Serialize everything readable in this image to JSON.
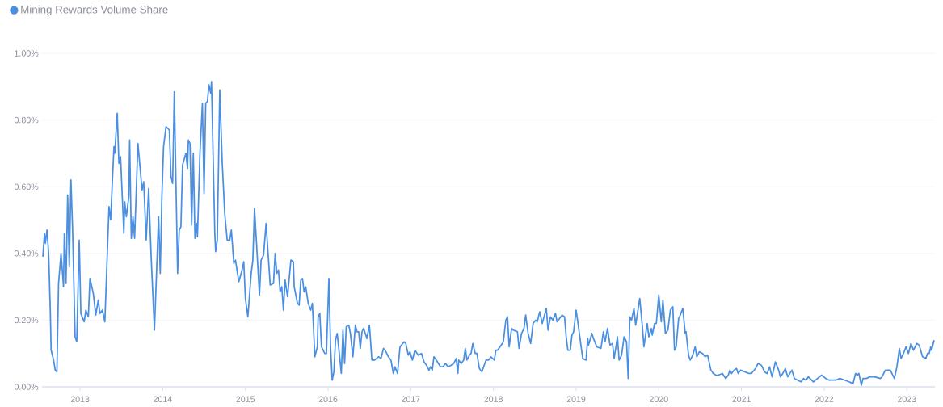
{
  "chart_data": {
    "type": "line",
    "x": [
      2012.55,
      2012.57,
      2012.58,
      2012.6,
      2012.62,
      2012.64,
      2012.65,
      2012.68,
      2012.7,
      2012.72,
      2012.74,
      2012.77,
      2012.8,
      2012.81,
      2012.83,
      2012.85,
      2012.87,
      2012.89,
      2012.91,
      2012.94,
      2012.96,
      2012.99,
      2013.01,
      2013.05,
      2013.07,
      2013.1,
      2013.12,
      2013.16,
      2013.19,
      2013.22,
      2013.24,
      2013.27,
      2013.3,
      2013.35,
      2013.37,
      2013.41,
      2013.42,
      2013.45,
      2013.47,
      2013.49,
      2013.53,
      2013.54,
      2013.56,
      2013.59,
      2013.6,
      2013.62,
      2013.64,
      2013.66,
      2013.7,
      2013.75,
      2013.77,
      2013.8,
      2013.83,
      2013.86,
      2013.9,
      2013.95,
      2013.97,
      2013.99,
      2014.01,
      2014.04,
      2014.08,
      2014.1,
      2014.12,
      2014.14,
      2014.18,
      2014.2,
      2014.22,
      2014.24,
      2014.28,
      2014.3,
      2014.31,
      2014.33,
      2014.35,
      2014.37,
      2014.39,
      2014.41,
      2014.42,
      2014.45,
      2014.48,
      2014.5,
      2014.52,
      2014.54,
      2014.56,
      2014.58,
      2014.59,
      2014.63,
      2014.64,
      2014.66,
      2014.69,
      2014.72,
      2014.75,
      2014.78,
      2014.81,
      2014.83,
      2014.86,
      2014.88,
      2014.92,
      2014.96,
      2014.98,
      2015.0,
      2015.03,
      2015.07,
      2015.09,
      2015.11,
      2015.13,
      2015.17,
      2015.19,
      2015.22,
      2015.25,
      2015.3,
      2015.34,
      2015.36,
      2015.38,
      2015.4,
      2015.42,
      2015.44,
      2015.46,
      2015.48,
      2015.51,
      2015.55,
      2015.58,
      2015.59,
      2015.63,
      2015.65,
      2015.67,
      2015.69,
      2015.71,
      2015.73,
      2015.76,
      2015.79,
      2015.81,
      2015.84,
      2015.87,
      2015.88,
      2015.9,
      2015.92,
      2015.96,
      2015.98,
      2016.01,
      2016.03,
      2016.05,
      2016.07,
      2016.09,
      2016.11,
      2016.14,
      2016.16,
      2016.18,
      2016.2,
      2016.22,
      2016.25,
      2016.27,
      2016.3,
      2016.33,
      2016.35,
      2016.37,
      2016.39,
      2016.41,
      2016.43,
      2016.47,
      2016.5,
      2016.53,
      2016.56,
      2016.61,
      2016.64,
      2016.67,
      2016.69,
      2016.73,
      2016.76,
      2016.79,
      2016.81,
      2016.84,
      2016.87,
      2016.92,
      2016.94,
      2016.97,
      2016.99,
      2017.02,
      2017.05,
      2017.09,
      2017.13,
      2017.16,
      2017.19,
      2017.22,
      2017.24,
      2017.26,
      2017.28,
      2017.31,
      2017.36,
      2017.39,
      2017.42,
      2017.45,
      2017.49,
      2017.52,
      2017.55,
      2017.57,
      2017.58,
      2017.61,
      2017.64,
      2017.66,
      2017.68,
      2017.71,
      2017.73,
      2017.75,
      2017.78,
      2017.8,
      2017.83,
      2017.86,
      2017.91,
      2017.94,
      2017.97,
      2018.01,
      2018.03,
      2018.05,
      2018.08,
      2018.12,
      2018.15,
      2018.17,
      2018.19,
      2018.22,
      2018.24,
      2018.29,
      2018.31,
      2018.34,
      2018.37,
      2018.39,
      2018.42,
      2018.45,
      2018.48,
      2018.51,
      2018.53,
      2018.56,
      2018.59,
      2018.64,
      2018.66,
      2018.69,
      2018.72,
      2018.75,
      2018.77,
      2018.83,
      2018.86,
      2018.88,
      2018.9,
      2018.93,
      2018.95,
      2018.97,
      2019.0,
      2019.02,
      2019.05,
      2019.08,
      2019.12,
      2019.14,
      2019.15,
      2019.19,
      2019.21,
      2019.25,
      2019.3,
      2019.33,
      2019.35,
      2019.38,
      2019.41,
      2019.44,
      2019.46,
      2019.5,
      2019.52,
      2019.55,
      2019.58,
      2019.61,
      2019.63,
      2019.65,
      2019.67,
      2019.7,
      2019.72,
      2019.77,
      2019.8,
      2019.82,
      2019.86,
      2019.88,
      2019.91,
      2019.92,
      2019.95,
      2019.97,
      2020.0,
      2020.03,
      2020.05,
      2020.08,
      2020.11,
      2020.14,
      2020.17,
      2020.19,
      2020.21,
      2020.24,
      2020.26,
      2020.29,
      2020.32,
      2020.33,
      2020.36,
      2020.38,
      2020.41,
      2020.44,
      2020.46,
      2020.49,
      2020.53,
      2020.56,
      2020.59,
      2020.63,
      2020.66,
      2020.69,
      2020.72,
      2020.77,
      2020.81,
      2020.84,
      2020.86,
      2020.88,
      2020.91,
      2020.94,
      2020.96,
      2020.99,
      2021.04,
      2021.09,
      2021.12,
      2021.17,
      2021.2,
      2021.24,
      2021.28,
      2021.31,
      2021.34,
      2021.37,
      2021.41,
      2021.45,
      2021.47,
      2021.5,
      2021.53,
      2021.56,
      2021.61,
      2021.64,
      2021.68,
      2021.72,
      2021.75,
      2021.78,
      2021.81,
      2021.87,
      2021.92,
      2021.97,
      2022.02,
      2022.06,
      2022.11,
      2022.14,
      2022.19,
      2022.25,
      2022.3,
      2022.35,
      2022.38,
      2022.4,
      2022.42,
      2022.45,
      2022.47,
      2022.51,
      2022.55,
      2022.61,
      2022.68,
      2022.7,
      2022.74,
      2022.77,
      2022.8,
      2022.85,
      2022.88,
      2022.91,
      2022.93,
      2022.96,
      2022.99,
      2023.02,
      2023.05,
      2023.08,
      2023.12,
      2023.15,
      2023.19,
      2023.23,
      2023.25,
      2023.27,
      2023.29,
      2023.3,
      2023.33
    ],
    "series": [
      {
        "name": "Mining Rewards Volume Share",
        "color": "#4a8fe2",
        "values": [
          0.39,
          0.46,
          0.43,
          0.47,
          0.4,
          0.23,
          0.11,
          0.08,
          0.05,
          0.045,
          0.31,
          0.4,
          0.3,
          0.46,
          0.31,
          0.575,
          0.36,
          0.62,
          0.47,
          0.15,
          0.135,
          0.44,
          0.22,
          0.195,
          0.23,
          0.21,
          0.325,
          0.28,
          0.215,
          0.26,
          0.22,
          0.23,
          0.195,
          0.54,
          0.5,
          0.72,
          0.7,
          0.82,
          0.67,
          0.69,
          0.46,
          0.555,
          0.51,
          0.57,
          0.74,
          0.445,
          0.51,
          0.445,
          0.73,
          0.59,
          0.615,
          0.44,
          0.595,
          0.39,
          0.17,
          0.51,
          0.34,
          0.57,
          0.72,
          0.78,
          0.77,
          0.63,
          0.61,
          0.885,
          0.34,
          0.47,
          0.48,
          0.665,
          0.7,
          0.655,
          0.74,
          0.73,
          0.485,
          0.7,
          0.445,
          0.49,
          0.45,
          0.7,
          0.85,
          0.58,
          0.85,
          0.855,
          0.905,
          0.88,
          0.915,
          0.46,
          0.405,
          0.44,
          0.89,
          0.67,
          0.52,
          0.44,
          0.44,
          0.47,
          0.37,
          0.38,
          0.315,
          0.35,
          0.375,
          0.265,
          0.21,
          0.34,
          0.38,
          0.535,
          0.45,
          0.275,
          0.38,
          0.395,
          0.49,
          0.305,
          0.31,
          0.4,
          0.34,
          0.35,
          0.285,
          0.3,
          0.23,
          0.32,
          0.27,
          0.38,
          0.375,
          0.3,
          0.25,
          0.245,
          0.32,
          0.325,
          0.285,
          0.3,
          0.25,
          0.23,
          0.25,
          0.09,
          0.12,
          0.21,
          0.22,
          0.12,
          0.1,
          0.1,
          0.325,
          0.12,
          0.02,
          0.045,
          0.14,
          0.16,
          0.09,
          0.04,
          0.17,
          0.07,
          0.18,
          0.185,
          0.16,
          0.09,
          0.185,
          0.165,
          0.165,
          0.115,
          0.165,
          0.175,
          0.145,
          0.185,
          0.08,
          0.08,
          0.09,
          0.085,
          0.115,
          0.11,
          0.09,
          0.08,
          0.04,
          0.06,
          0.04,
          0.12,
          0.135,
          0.13,
          0.095,
          0.105,
          0.08,
          0.11,
          0.095,
          0.1,
          0.075,
          0.065,
          0.05,
          0.06,
          0.05,
          0.09,
          0.08,
          0.06,
          0.06,
          0.07,
          0.06,
          0.065,
          0.07,
          0.085,
          0.04,
          0.08,
          0.07,
          0.08,
          0.115,
          0.08,
          0.095,
          0.1,
          0.13,
          0.1,
          0.1,
          0.055,
          0.045,
          0.08,
          0.08,
          0.09,
          0.08,
          0.11,
          0.11,
          0.12,
          0.135,
          0.2,
          0.21,
          0.12,
          0.175,
          0.17,
          0.165,
          0.115,
          0.16,
          0.175,
          0.215,
          0.16,
          0.13,
          0.19,
          0.2,
          0.195,
          0.225,
          0.19,
          0.235,
          0.17,
          0.21,
          0.2,
          0.22,
          0.195,
          0.215,
          0.21,
          0.15,
          0.11,
          0.11,
          0.155,
          0.165,
          0.23,
          0.195,
          0.14,
          0.085,
          0.08,
          0.145,
          0.125,
          0.16,
          0.145,
          0.12,
          0.115,
          0.165,
          0.135,
          0.175,
          0.125,
          0.13,
          0.085,
          0.15,
          0.08,
          0.095,
          0.15,
          0.135,
          0.025,
          0.21,
          0.2,
          0.235,
          0.185,
          0.265,
          0.185,
          0.12,
          0.19,
          0.15,
          0.175,
          0.155,
          0.19,
          0.19,
          0.275,
          0.195,
          0.26,
          0.16,
          0.17,
          0.23,
          0.24,
          0.11,
          0.12,
          0.205,
          0.215,
          0.235,
          0.16,
          0.165,
          0.095,
          0.08,
          0.095,
          0.12,
          0.09,
          0.105,
          0.1,
          0.09,
          0.095,
          0.05,
          0.04,
          0.035,
          0.035,
          0.04,
          0.025,
          0.035,
          0.05,
          0.04,
          0.05,
          0.055,
          0.04,
          0.05,
          0.045,
          0.04,
          0.04,
          0.055,
          0.07,
          0.065,
          0.045,
          0.04,
          0.06,
          0.03,
          0.075,
          0.05,
          0.03,
          0.04,
          0.055,
          0.03,
          0.05,
          0.025,
          0.02,
          0.015,
          0.025,
          0.02,
          0.03,
          0.015,
          0.025,
          0.035,
          0.025,
          0.02,
          0.02,
          0.02,
          0.025,
          0.02,
          0.015,
          0.01,
          0.04,
          0.035,
          0.04,
          0.005,
          0.025,
          0.025,
          0.03,
          0.03,
          0.025,
          0.03,
          0.05,
          0.05,
          0.05,
          0.025,
          0.06,
          0.115,
          0.085,
          0.1,
          0.12,
          0.1,
          0.13,
          0.11,
          0.13,
          0.125,
          0.09,
          0.085,
          0.1,
          0.1,
          0.12,
          0.11,
          0.14
        ]
      }
    ],
    "xlim": [
      2012.54,
      2023.34
    ],
    "xticks": [
      2013,
      2014,
      2015,
      2016,
      2017,
      2018,
      2019,
      2020,
      2021,
      2022,
      2023
    ],
    "ylim": [
      0,
      1.0
    ],
    "yticks": [
      {
        "value": 0,
        "label": "0.00%"
      },
      {
        "value": 0.2,
        "label": "0.20%"
      },
      {
        "value": 0.4,
        "label": "0.40%"
      },
      {
        "value": 0.6,
        "label": "0.60%"
      },
      {
        "value": 0.8,
        "label": "0.80%"
      },
      {
        "value": 1.0,
        "label": "1.00%"
      }
    ],
    "grid": "y",
    "legend": "top left",
    "marker": "none",
    "line_style": "solid"
  }
}
